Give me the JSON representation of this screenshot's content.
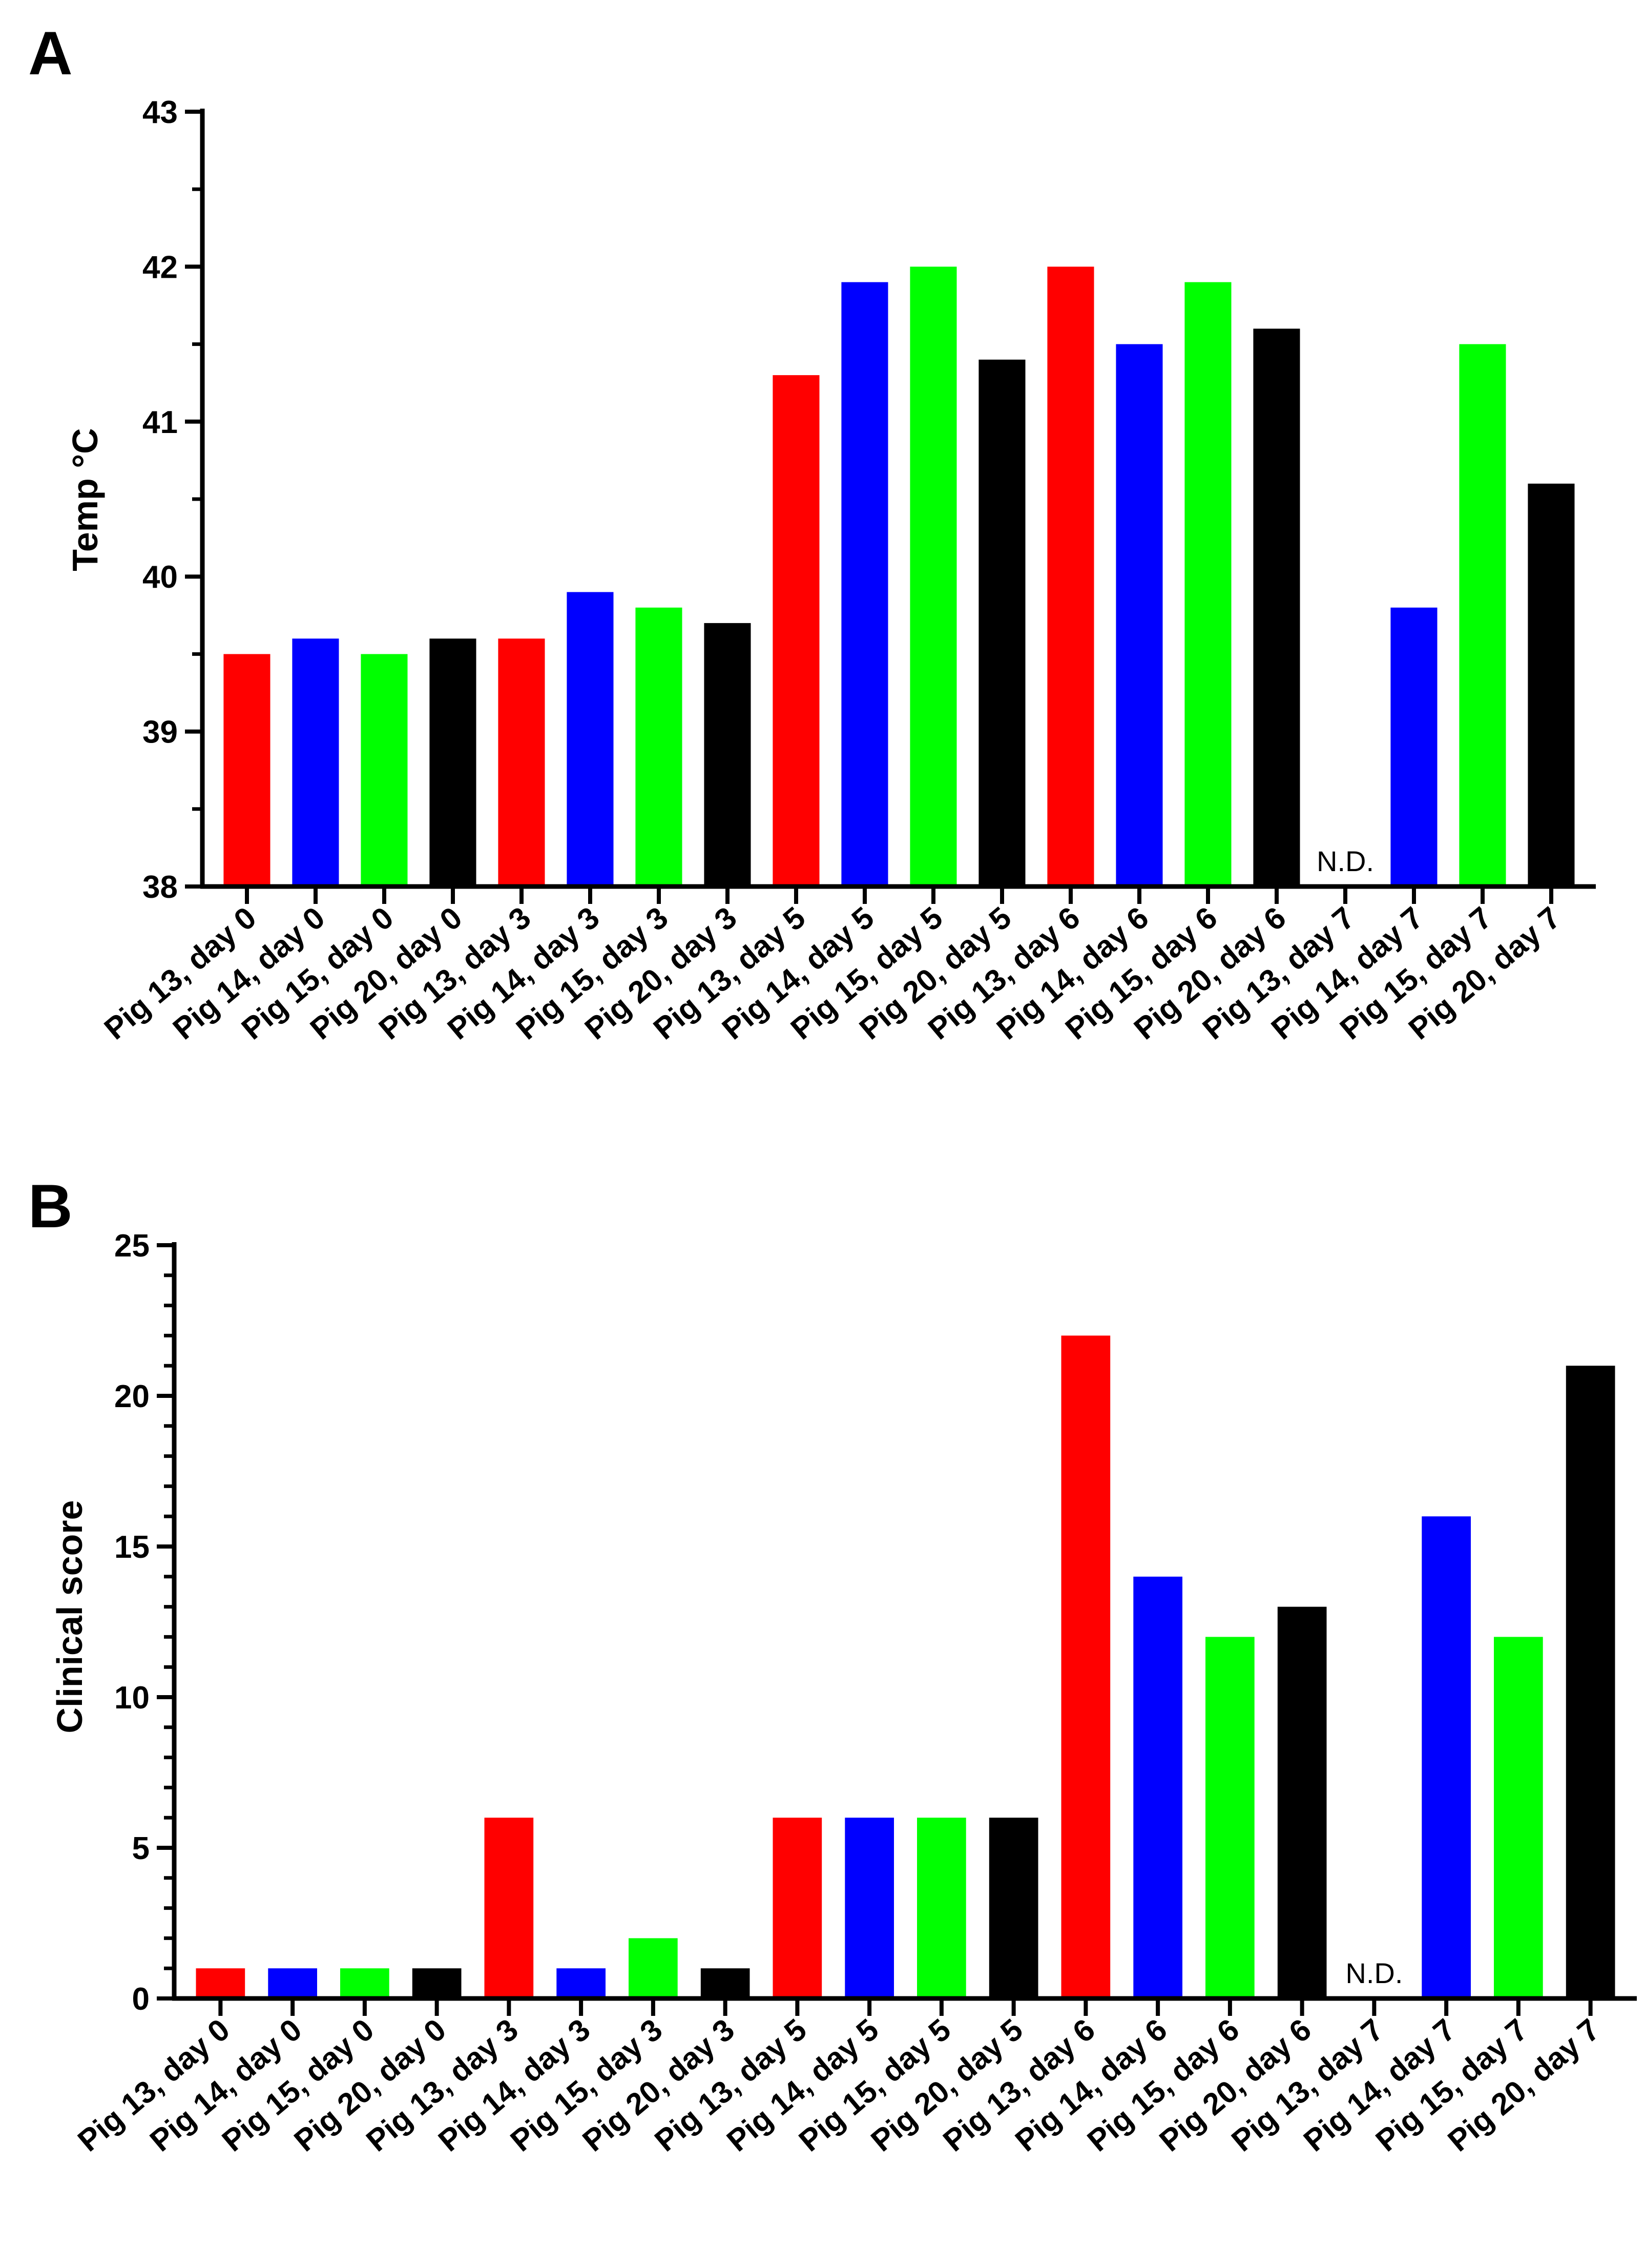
{
  "chart_data": [
    {
      "panel": "A",
      "type": "bar",
      "title": "",
      "xlabel": "",
      "ylabel": "Temp °C",
      "ylim": [
        38,
        43
      ],
      "yticks": [
        38,
        39,
        40,
        41,
        42,
        43
      ],
      "grid": false,
      "categories": [
        "Pig 13, day 0",
        "Pig 14, day 0",
        "Pig 15, day 0",
        "Pig 20, day 0",
        "Pig 13, day 3",
        "Pig 14, day 3",
        "Pig 15, day 3",
        "Pig 20, day 3",
        "Pig 13, day 5",
        "Pig 14, day 5",
        "Pig 15, day 5",
        "Pig 20, day 5",
        "Pig 13, day 6",
        "Pig 14, day 6",
        "Pig 15, day 6",
        "Pig 20, day 6",
        "Pig 13, day 7",
        "Pig 14, day 7",
        "Pig 15, day 7",
        "Pig 20, day 7"
      ],
      "values": [
        39.5,
        39.6,
        39.5,
        39.6,
        39.6,
        39.9,
        39.8,
        39.7,
        41.3,
        41.9,
        42.0,
        41.4,
        42.0,
        41.5,
        41.9,
        41.6,
        null,
        39.8,
        41.5,
        40.6
      ],
      "colors": [
        "#ff0000",
        "#0000ff",
        "#00ff00",
        "#000000",
        "#ff0000",
        "#0000ff",
        "#00ff00",
        "#000000",
        "#ff0000",
        "#0000ff",
        "#00ff00",
        "#000000",
        "#ff0000",
        "#0000ff",
        "#00ff00",
        "#000000",
        "#ff0000",
        "#0000ff",
        "#00ff00",
        "#000000"
      ],
      "missing_label": "N.D."
    },
    {
      "panel": "B",
      "type": "bar",
      "title": "",
      "xlabel": "",
      "ylabel": "Clinical score",
      "ylim": [
        0,
        25
      ],
      "yticks": [
        0,
        5,
        10,
        15,
        20,
        25
      ],
      "grid": false,
      "categories": [
        "Pig 13, day 0",
        "Pig 14, day 0",
        "Pig 15, day 0",
        "Pig 20, day 0",
        "Pig 13, day 3",
        "Pig 14, day 3",
        "Pig 15, day 3",
        "Pig 20, day 3",
        "Pig 13, day 5",
        "Pig 14, day 5",
        "Pig 15, day 5",
        "Pig 20, day 5",
        "Pig 13, day 6",
        "Pig 14, day 6",
        "Pig 15, day 6",
        "Pig 20, day 6",
        "Pig 13, day 7",
        "Pig 14, day 7",
        "Pig 15, day 7",
        "Pig 20, day 7"
      ],
      "values": [
        1,
        1,
        1,
        1,
        6,
        1,
        2,
        1,
        6,
        6,
        6,
        6,
        22,
        14,
        12,
        13,
        null,
        16,
        12,
        21
      ],
      "colors": [
        "#ff0000",
        "#0000ff",
        "#00ff00",
        "#000000",
        "#ff0000",
        "#0000ff",
        "#00ff00",
        "#000000",
        "#ff0000",
        "#0000ff",
        "#00ff00",
        "#000000",
        "#ff0000",
        "#0000ff",
        "#00ff00",
        "#000000",
        "#ff0000",
        "#0000ff",
        "#00ff00",
        "#000000"
      ],
      "missing_label": "N.D."
    }
  ]
}
